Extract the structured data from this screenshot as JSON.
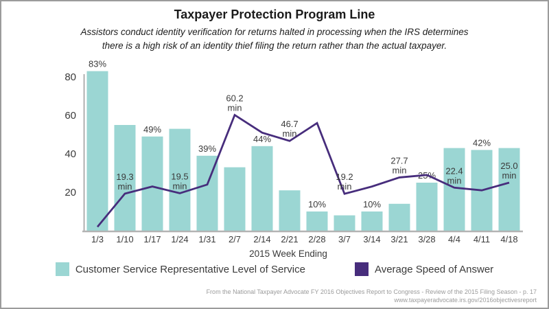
{
  "header": {
    "title": "Taxpayer Protection Program Line",
    "subtitle_line1": "Assistors conduct identity verification for returns halted in processing when the IRS determines",
    "subtitle_line2": "there is a high risk of an identity thief filing the return rather than the actual taxpayer."
  },
  "chart_data": {
    "type": "combo-bar-line",
    "title": "Taxpayer Protection Program Line",
    "categories": [
      "1/3",
      "1/10",
      "1/17",
      "1/24",
      "1/31",
      "2/7",
      "2/14",
      "2/21",
      "2/28",
      "3/7",
      "3/14",
      "3/21",
      "3/28",
      "4/4",
      "4/11",
      "4/18"
    ],
    "series": [
      {
        "name": "Customer Service Representative Level of Service",
        "kind": "bar",
        "color": "#9bd6d3",
        "unit": "%",
        "values": [
          83,
          55,
          49,
          53,
          39,
          33,
          44,
          21,
          10,
          8,
          10,
          14,
          25,
          43,
          42,
          43
        ],
        "point_labels": [
          "83%",
          "",
          "49%",
          "",
          "39%",
          "",
          "44%",
          "",
          "10%",
          "",
          "10%",
          "",
          "25%",
          "",
          "42%",
          ""
        ]
      },
      {
        "name": "Average Speed of Answer",
        "kind": "line",
        "color": "#472d7c",
        "unit": "min",
        "values": [
          2,
          19.3,
          23,
          19.5,
          24,
          60.2,
          51,
          46.7,
          56,
          19.2,
          23,
          27.7,
          29,
          22.4,
          21,
          25
        ],
        "point_labels": [
          "",
          "19.3 min",
          "",
          "19.5 min",
          "",
          "60.2 min",
          "",
          "46.7 min",
          "",
          "19.2 min",
          "",
          "27.7 min",
          "",
          "22.4 min",
          "",
          "25.0 min"
        ]
      }
    ],
    "xlabel": "2015 Week Ending",
    "ylim": [
      0,
      88
    ],
    "yticks": [
      20,
      40,
      60,
      80
    ],
    "grid": false,
    "legend_position": "bottom",
    "axis_color": "#b3b3b3",
    "text_color": "#3a3a3a"
  },
  "footer": {
    "line1": "From the National Taxpayer Advocate FY 2016 Objectives Report to Congress - Review of the 2015 Filing Season - p. 17",
    "line2": "www.taxpayeradvocate.irs.gov/2016objectivesreport"
  }
}
